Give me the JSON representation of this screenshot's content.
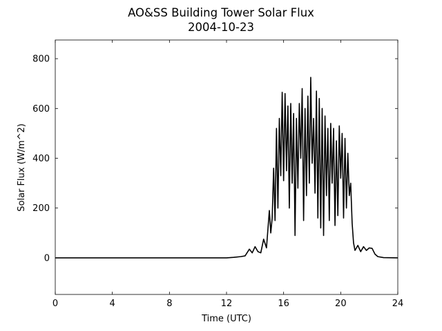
{
  "chart_data": {
    "type": "line",
    "title": "AO&SS Building Tower Solar Flux",
    "subtitle": "2004-10-23",
    "x_label": "Time (UTC)",
    "y_label": "Solar Flux (W/m^2)",
    "xlim": [
      0,
      24
    ],
    "xticks": [
      0,
      4,
      8,
      12,
      16,
      20,
      24
    ],
    "ylim": [
      -147,
      875
    ],
    "yticks": [
      0,
      200,
      400,
      600,
      800
    ],
    "grid": false,
    "series": [
      {
        "name": "Solar Flux",
        "color": "#000000",
        "x": [
          0,
          2,
          4,
          6,
          8,
          10,
          12,
          12.5,
          13,
          13.3,
          13.6,
          13.8,
          14.0,
          14.2,
          14.4,
          14.6,
          14.8,
          15.0,
          15.1,
          15.2,
          15.3,
          15.4,
          15.5,
          15.6,
          15.7,
          15.8,
          15.9,
          16.0,
          16.1,
          16.2,
          16.3,
          16.4,
          16.5,
          16.6,
          16.7,
          16.8,
          16.9,
          17.0,
          17.1,
          17.2,
          17.3,
          17.4,
          17.5,
          17.6,
          17.7,
          17.8,
          17.9,
          18.0,
          18.1,
          18.2,
          18.3,
          18.4,
          18.5,
          18.6,
          18.7,
          18.8,
          18.9,
          19.0,
          19.1,
          19.2,
          19.3,
          19.4,
          19.5,
          19.6,
          19.7,
          19.8,
          19.9,
          20.0,
          20.1,
          20.2,
          20.3,
          20.4,
          20.5,
          20.6,
          20.7,
          20.8,
          20.9,
          21.0,
          21.2,
          21.4,
          21.6,
          21.8,
          22.0,
          22.2,
          22.4,
          22.6,
          23,
          24
        ],
        "values": [
          0,
          0,
          0,
          0,
          0,
          0,
          0,
          2,
          5,
          8,
          35,
          20,
          45,
          25,
          20,
          75,
          40,
          190,
          100,
          160,
          360,
          150,
          520,
          200,
          560,
          330,
          665,
          310,
          660,
          350,
          610,
          200,
          620,
          300,
          580,
          90,
          560,
          280,
          620,
          400,
          680,
          150,
          600,
          250,
          650,
          300,
          725,
          380,
          560,
          260,
          670,
          160,
          640,
          120,
          600,
          90,
          570,
          250,
          520,
          150,
          540,
          300,
          520,
          130,
          470,
          170,
          530,
          320,
          500,
          160,
          480,
          200,
          420,
          250,
          300,
          140,
          60,
          30,
          50,
          25,
          45,
          30,
          40,
          38,
          15,
          5,
          1,
          0
        ]
      }
    ]
  }
}
